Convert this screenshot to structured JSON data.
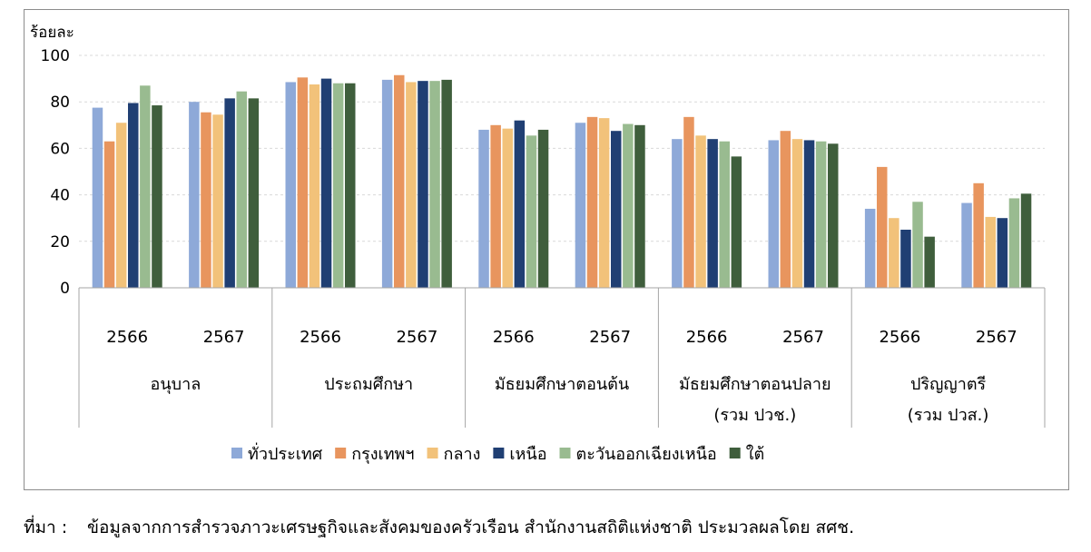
{
  "chart_data": {
    "type": "bar",
    "ylabel": "ร้อยละ",
    "ylim": [
      0,
      100
    ],
    "yticks": [
      0,
      20,
      40,
      60,
      80,
      100
    ],
    "grid": true,
    "legend_position": "bottom",
    "groups": [
      {
        "name": "อนุบาล",
        "years": [
          "2566",
          "2567"
        ]
      },
      {
        "name": "ประถมศึกษา",
        "years": [
          "2566",
          "2567"
        ]
      },
      {
        "name": "มัธยมศึกษาตอนต้น",
        "years": [
          "2566",
          "2567"
        ]
      },
      {
        "name": "มัธยมศึกษาตอนปลาย\n(รวม ปวช.)",
        "years": [
          "2566",
          "2567"
        ]
      },
      {
        "name": "ปริญญาตรี\n(รวม ปวส.)",
        "years": [
          "2566",
          "2567"
        ]
      }
    ],
    "categories": [
      "อนุบาล 2566",
      "อนุบาล 2567",
      "ประถมศึกษา 2566",
      "ประถมศึกษา 2567",
      "มัธยมศึกษาตอนต้น 2566",
      "มัธยมศึกษาตอนต้น 2567",
      "มัธยมศึกษาตอนปลาย (รวม ปวช.) 2566",
      "มัธยมศึกษาตอนปลาย (รวม ปวช.) 2567",
      "ปริญญาตรี (รวม ปวส.) 2566",
      "ปริญญาตรี (รวม ปวส.) 2567"
    ],
    "series": [
      {
        "name": "ทั่วประเทศ",
        "color": "#8ea9d8",
        "values": [
          77.5,
          80.0,
          88.5,
          89.5,
          68.0,
          71.0,
          64.0,
          63.5,
          34.0,
          36.5
        ]
      },
      {
        "name": "กรุงเทพฯ",
        "color": "#e8955e",
        "values": [
          63.0,
          75.5,
          90.5,
          91.5,
          70.0,
          73.5,
          73.5,
          67.5,
          52.0,
          45.0
        ]
      },
      {
        "name": "กลาง",
        "color": "#f2c27a",
        "values": [
          71.0,
          74.5,
          87.5,
          88.5,
          68.5,
          73.0,
          65.5,
          64.0,
          30.0,
          30.5
        ]
      },
      {
        "name": "เหนือ",
        "color": "#203f73",
        "values": [
          79.5,
          81.5,
          90.0,
          89.0,
          72.0,
          67.5,
          64.0,
          63.5,
          25.0,
          30.0
        ]
      },
      {
        "name": "ตะวันออกเฉียงเหนือ",
        "color": "#99bb90",
        "values": [
          87.0,
          84.5,
          88.0,
          89.0,
          65.5,
          70.5,
          63.0,
          63.0,
          37.0,
          38.5
        ]
      },
      {
        "name": "ใต้",
        "color": "#3f5e3c",
        "values": [
          78.5,
          81.5,
          88.0,
          89.5,
          68.0,
          70.0,
          56.5,
          62.0,
          22.0,
          40.5
        ]
      }
    ]
  },
  "source": {
    "label": "ที่มา :",
    "text": "ข้อมูลจากการสำรวจภาวะเศรษฐกิจและสังคมของครัวเรือน สำนักงานสถิติแห่งชาติ ประมวลผลโดย สศช."
  }
}
